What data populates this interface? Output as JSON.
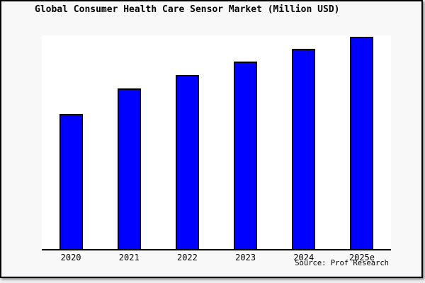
{
  "figure": {
    "window_background": "#eceef0",
    "figure_background": "#f8f8f8",
    "plot_background": "#ffffff",
    "frame_color": "#000000"
  },
  "chart_data": {
    "type": "bar",
    "title": "Global Consumer Health Care Sensor Market (Million USD)",
    "categories": [
      "2020",
      "2021",
      "2022",
      "2023",
      "2024",
      "2025e"
    ],
    "values": [
      63.7,
      75.7,
      82.0,
      88.3,
      94.3,
      100.0
    ],
    "units": "relative index (chart shows no y-axis scale; tallest 2025e bar = 100)",
    "xlabel": "",
    "ylabel": "",
    "ylim": [
      0,
      100.7
    ],
    "grid": false,
    "legend": null,
    "bar_color": "#0000ff",
    "bar_border_color": "#000000",
    "source_label": "Source: Prof Research"
  }
}
